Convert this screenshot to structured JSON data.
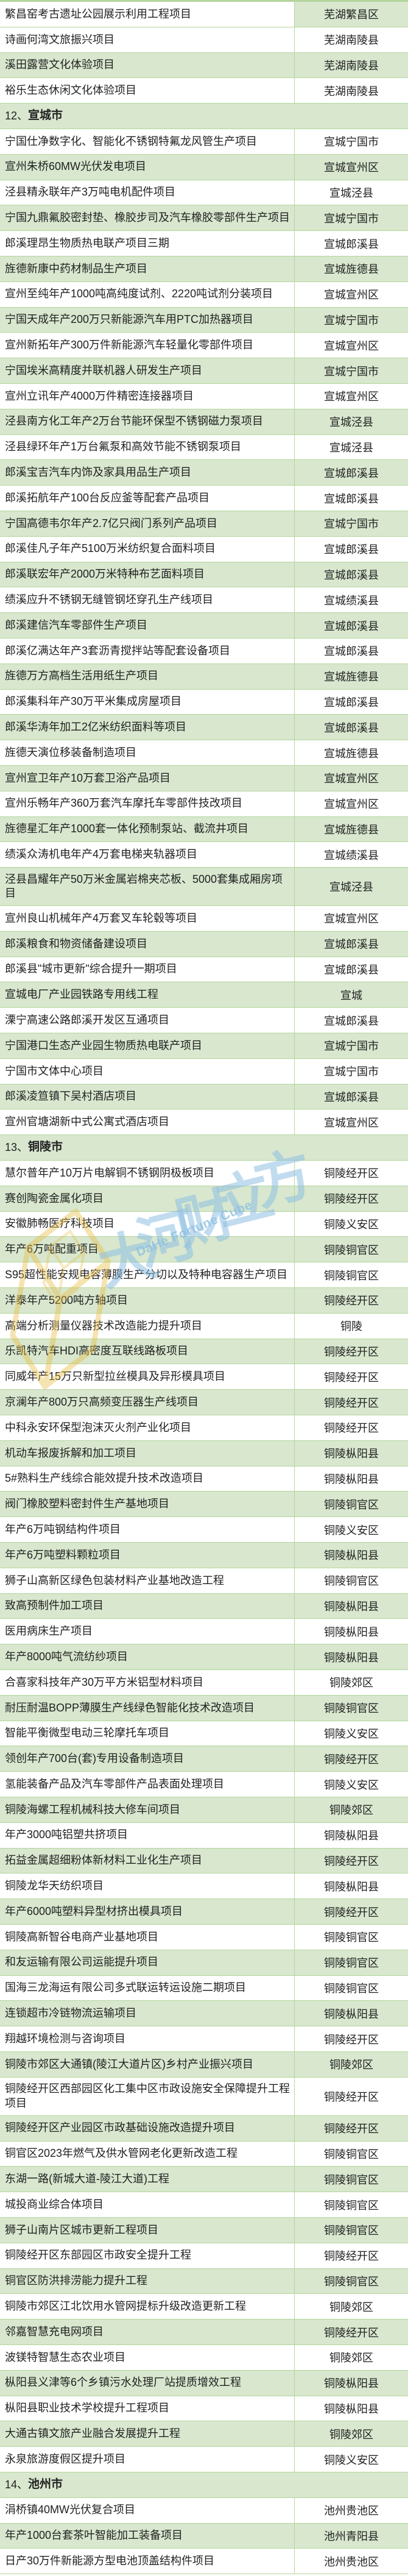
{
  "table": {
    "rows": [
      {
        "name": "繁昌窑考古遗址公园展示利用工程项目",
        "region": "芜湖繁昌区"
      },
      {
        "name": "诗画何湾文旅振兴项目",
        "region": "芜湖南陵县"
      },
      {
        "name": "溪田露营文化体验项目",
        "region": "芜湖南陵县"
      },
      {
        "name": "裕乐生态休闲文化体验项目",
        "region": "芜湖南陵县"
      },
      {
        "header": true,
        "prefix": "12、",
        "city": "宣城市"
      },
      {
        "name": "宁国仕净数字化、智能化不锈钢特氟龙风管生产项目",
        "region": "宣城宁国市"
      },
      {
        "name": "宣州朱桥60MW光伏发电项目",
        "region": "宣城宣州区"
      },
      {
        "name": "泾县精永联年产3万吨电机配件项目",
        "region": "宣城泾县"
      },
      {
        "name": "宁国九鼎氟胶密封垫、橡胶步司及汽车橡胶零部件生产项目",
        "region": "宣城宁国市"
      },
      {
        "name": "郎溪理昂生物质热电联产项目三期",
        "region": "宣城郎溪县"
      },
      {
        "name": "旌德新康中药材制品生产项目",
        "region": "宣城旌德县"
      },
      {
        "name": "宣州至纯年产1000吨高纯度试剂、2220吨试剂分装项目",
        "region": "宣城宣州区"
      },
      {
        "name": "宁国天成年产200万只新能源汽车用PTC加热器项目",
        "region": "宣城宁国市"
      },
      {
        "name": "宣州新拓年产300万件新能源汽车轻量化零部件项目",
        "region": "宣城宣州区"
      },
      {
        "name": "宁国埃米高精度并联机器人研发生产项目",
        "region": "宣城宁国市"
      },
      {
        "name": "宣州立讯年产4000万件精密连接器项目",
        "region": "宣城宣州区"
      },
      {
        "name": "泾县南方化工年产2万台节能环保型不锈钢磁力泵项目",
        "region": "宣城泾县"
      },
      {
        "name": "泾县绿环年产1万台氟泵和高效节能不锈钢泵项目",
        "region": "宣城泾县"
      },
      {
        "name": "郎溪宝吉汽车内饰及家具用品生产项目",
        "region": "宣城郎溪县"
      },
      {
        "name": "郎溪拓航年产100台反应釜等配套产品项目",
        "region": "宣城郎溪县"
      },
      {
        "name": "宁国高德韦尔年产2.7亿只阀门系列产品项目",
        "region": "宣城宁国市"
      },
      {
        "name": "郎溪佳凡子年产5100万米纺织复合面料项目",
        "region": "宣城郎溪县"
      },
      {
        "name": "郎溪联宏年产2000万米特种布艺面料项目",
        "region": "宣城郎溪县"
      },
      {
        "name": "绩溪应升不锈钢无缝管钢坯穿孔生产线项目",
        "region": "宣城绩溪县"
      },
      {
        "name": "郎溪建信汽车零部件生产项目",
        "region": "宣城郎溪县"
      },
      {
        "name": "郎溪亿满达年产3套沥青搅拌站等配套设备项目",
        "region": "宣城郎溪县"
      },
      {
        "name": "旌德万方高档生活用纸生产项目",
        "region": "宣城旌德县"
      },
      {
        "name": "郎溪集科年产30万平米集成房屋项目",
        "region": "宣城郎溪县"
      },
      {
        "name": "郎溪华涛年加工2亿米纺织面料等项目",
        "region": "宣城郎溪县"
      },
      {
        "name": "旌德天演位移装备制造项目",
        "region": "宣城旌德县"
      },
      {
        "name": "宣州宣卫年产10万套卫浴产品项目",
        "region": "宣城宣州区"
      },
      {
        "name": "宣州乐畅年产360万套汽车摩托车零部件技改项目",
        "region": "宣城宣州区"
      },
      {
        "name": "旌德星汇年产1000套一体化预制泵站、截流井项目",
        "region": "宣城旌德县"
      },
      {
        "name": "绩溪众涛机电年产4万套电梯夹轨器项目",
        "region": "宣城绩溪县"
      },
      {
        "name": "泾县昌耀年产50万米金属岩棉夹芯板、5000套集成厢房项目",
        "region": "宣城泾县"
      },
      {
        "name": "宣州良山机械年产4万套叉车轮毂等项目",
        "region": "宣城宣州区"
      },
      {
        "name": "郎溪粮食和物资储备建设项目",
        "region": "宣城郎溪县"
      },
      {
        "name": "郎溪县\"城市更新\"综合提升一期项目",
        "region": "宣城郎溪县"
      },
      {
        "name": "宣城电厂产业园铁路专用线工程",
        "region": "宣城"
      },
      {
        "name": "溧宁高速公路郎溪开发区互通项目",
        "region": "宣城郎溪县"
      },
      {
        "name": "宁国港口生态产业园生物质热电联产项目",
        "region": "宣城宁国市"
      },
      {
        "name": "宁国市文体中心项目",
        "region": "宣城宁国市"
      },
      {
        "name": "郎溪凌笪镇下吴村酒店项目",
        "region": "宣城郎溪县"
      },
      {
        "name": "宣州官塘湖新中式公寓式酒店项目",
        "region": "宣城宣州区"
      },
      {
        "header": true,
        "prefix": "13、",
        "city": "铜陵市"
      },
      {
        "name": "慧尔普年产10万片电解铜不锈钢阴极板项目",
        "region": "铜陵经开区"
      },
      {
        "name": "赛创陶瓷金属化项目",
        "region": "铜陵经开区"
      },
      {
        "name": "安徽肺畅医疗科技项目",
        "region": "铜陵义安区"
      },
      {
        "name": "年产6万吨配重项目",
        "region": "铜陵铜官区"
      },
      {
        "name": "S95超性能安规电容薄膜生产分切以及特种电容器生产项目",
        "region": "铜陵铜官区"
      },
      {
        "name": "洋泰年产5200吨方轴项目",
        "region": "铜陵经开区"
      },
      {
        "name": "高端分析测量仪器技术改造能力提升项目",
        "region": "铜陵"
      },
      {
        "name": "乐凯特汽车HDI高密度互联线路板项目",
        "region": "铜陵经开区"
      },
      {
        "name": "同威年产15万只新型拉丝模具及异形模具项目",
        "region": "铜陵经开区"
      },
      {
        "name": "京澜年产800万只高频变压器生产线项目",
        "region": "铜陵经开区"
      },
      {
        "name": "中科永安环保型泡沫灭火剂产业化项目",
        "region": "铜陵经开区"
      },
      {
        "name": "机动车报废拆解和加工项目",
        "region": "铜陵枞阳县"
      },
      {
        "name": "5#熟料生产线综合能效提升技术改造项目",
        "region": "铜陵枞阳县"
      },
      {
        "name": "阀门橡胶塑料密封件生产基地项目",
        "region": "铜陵铜官区"
      },
      {
        "name": "年产6万吨钢结构件项目",
        "region": "铜陵义安区"
      },
      {
        "name": "年产6万吨塑料颗粒项目",
        "region": "铜陵枞阳县"
      },
      {
        "name": "狮子山高新区绿色包装材料产业基地改造工程",
        "region": "铜陵铜官区"
      },
      {
        "name": "致高预制件加工项目",
        "region": "铜陵枞阳县"
      },
      {
        "name": "医用病床生产项目",
        "region": "铜陵枞阳县"
      },
      {
        "name": "年产8000吨气流纺纱项目",
        "region": "铜陵枞阳县"
      },
      {
        "name": "合喜家科技年产30万平方米铝型材料项目",
        "region": "铜陵郊区"
      },
      {
        "name": "耐压耐温BOPP薄膜生产线绿色智能化技术改造项目",
        "region": "铜陵铜官区"
      },
      {
        "name": "智能平衡微型电动三轮摩托车项目",
        "region": "铜陵义安区"
      },
      {
        "name": "领创年产700台(套)专用设备制造项目",
        "region": "铜陵经开区"
      },
      {
        "name": "氢能装备产品及汽车零部件产品表面处理项目",
        "region": "铜陵义安区"
      },
      {
        "name": "铜陵海螺工程机械科技大修车间项目",
        "region": "铜陵郊区"
      },
      {
        "name": "年产3000吨铝塑共挤项目",
        "region": "铜陵枞阳县"
      },
      {
        "name": "拓益金属超细粉体新材料工业化生产项目",
        "region": "铜陵经开区"
      },
      {
        "name": "铜陵龙华天纺织项目",
        "region": "铜陵枞阳县"
      },
      {
        "name": "年产6000吨塑料异型材挤出模具项目",
        "region": "铜陵经开区"
      },
      {
        "name": "铜陵高新智谷电商产业基地项目",
        "region": "铜陵铜官区"
      },
      {
        "name": "和友运输有限公司运能提升项目",
        "region": "铜陵铜官区"
      },
      {
        "name": "国海三龙海运有限公司多式联运转运设施二期项目",
        "region": "铜陵铜官区"
      },
      {
        "name": "连锁超市冷链物流运输项目",
        "region": "铜陵枞阳县"
      },
      {
        "name": "翔越环境检测与咨询项目",
        "region": "铜陵经开区"
      },
      {
        "name": "铜陵市郊区大通镇(陵江大道片区)乡村产业振兴项目",
        "region": "铜陵郊区"
      },
      {
        "name": "铜陵经开区西部园区化工集中区市政设施安全保障提升工程项目",
        "region": "铜陵经开区"
      },
      {
        "name": "铜陵经开区产业园区市政基础设施改造提升项目",
        "region": "铜陵经开区"
      },
      {
        "name": "铜官区2023年燃气及供水管网老化更新改造工程",
        "region": "铜陵铜官区"
      },
      {
        "name": "东湖一路(新城大道-陵江大道)工程",
        "region": "铜陵铜官区"
      },
      {
        "name": "城投商业综合体项目",
        "region": "铜陵铜官区"
      },
      {
        "name": "狮子山南片区城市更新工程项目",
        "region": "铜陵铜官区"
      },
      {
        "name": "铜陵经开区东部园区市政安全提升工程",
        "region": "铜陵经开区"
      },
      {
        "name": "铜官区防洪排涝能力提升工程",
        "region": "铜陵铜官区"
      },
      {
        "name": "铜陵市郊区江北饮用水管网提标升级改造更新工程",
        "region": "铜陵郊区"
      },
      {
        "name": "邻嘉智慧充电网项目",
        "region": "铜陵经开区"
      },
      {
        "name": "波镁特智慧生态农业项目",
        "region": "铜陵郊区"
      },
      {
        "name": "枞阳县义津等6个乡镇污水处理厂站提质增效工程",
        "region": "铜陵枞阳县"
      },
      {
        "name": "枞阳县职业技术学校提升工程项目",
        "region": "铜陵枞阳县"
      },
      {
        "name": "大通古镇文旅产业融合发展提升工程",
        "region": "铜陵郊区"
      },
      {
        "name": "永泉旅游度假区提升项目",
        "region": "铜陵义安区"
      },
      {
        "header": true,
        "prefix": "14、",
        "city": "池州市"
      },
      {
        "name": "涓桥镇40MW光伏复合项目",
        "region": "池州贵池区"
      },
      {
        "name": "年产1000台套茶叶智能加工装备项目",
        "region": "池州青阳县"
      },
      {
        "name": "日产30万件新能源方型电池顶盖结构件项目",
        "region": "池州贵池区"
      }
    ]
  },
  "watermark": {
    "cn": "大河财立方",
    "en": "DaHe Fortune Cube"
  },
  "colors": {
    "row_green": "#d8e7ce",
    "grid_green": "#b3d69c",
    "text": "#212121",
    "watermark_blue": "#8fc0e2",
    "watermark_yellow": "#e8bd45"
  }
}
